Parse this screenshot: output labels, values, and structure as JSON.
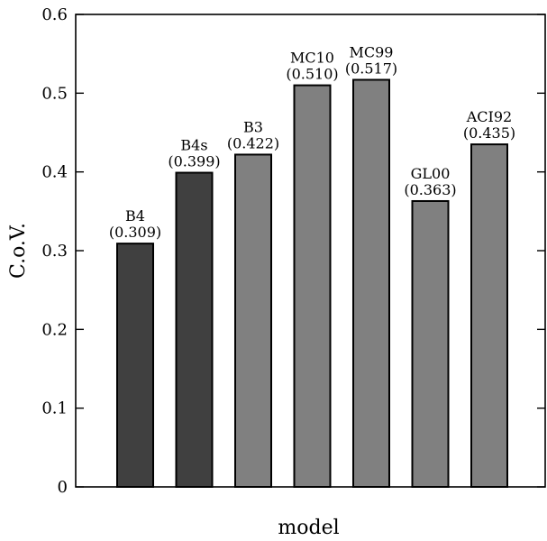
{
  "chart_data": {
    "type": "bar",
    "title": "",
    "xlabel": "model",
    "ylabel": "C.o.V.",
    "ylim": [
      0,
      0.6
    ],
    "yticks": [
      "0",
      "0.1",
      "0.2",
      "0.3",
      "0.4",
      "0.5",
      "0.6"
    ],
    "grid": false,
    "legend": "none",
    "bars": [
      {
        "name": "B4",
        "value": 0.309,
        "value_label": "(0.309)",
        "color": "#404040"
      },
      {
        "name": "B4s",
        "value": 0.399,
        "value_label": "(0.399)",
        "color": "#404040"
      },
      {
        "name": "B3",
        "value": 0.422,
        "value_label": "(0.422)",
        "color": "#808080"
      },
      {
        "name": "MC10",
        "value": 0.51,
        "value_label": "(0.510)",
        "color": "#808080"
      },
      {
        "name": "MC99",
        "value": 0.517,
        "value_label": "(0.517)",
        "color": "#808080"
      },
      {
        "name": "GL00",
        "value": 0.363,
        "value_label": "(0.363)",
        "color": "#808080"
      },
      {
        "name": "ACI92",
        "value": 0.435,
        "value_label": "(0.435)",
        "color": "#808080"
      }
    ]
  }
}
